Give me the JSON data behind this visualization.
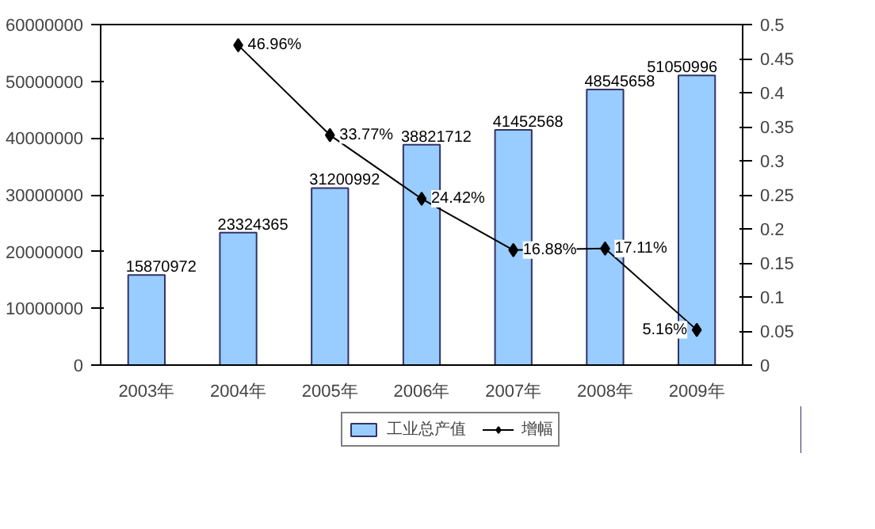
{
  "chart_data": {
    "type": "bar",
    "categories": [
      "2003年",
      "2004年",
      "2005年",
      "2006年",
      "2007年",
      "2008年",
      "2009年"
    ],
    "series": [
      {
        "name": "工业总产值",
        "color": "#99ccff",
        "values": [
          15870972,
          23324365,
          31200992,
          38821712,
          41452568,
          48545658,
          51050996
        ],
        "value_labels": [
          "15870972",
          "23324365",
          "31200992",
          "38821712",
          "41452568",
          "48545658",
          "51050996"
        ]
      },
      {
        "name": "增幅",
        "type": "line",
        "axis": "y2",
        "color": "#000000",
        "values": [
          null,
          0.4696,
          0.3377,
          0.2442,
          0.1688,
          0.1711,
          0.0516
        ],
        "value_labels": [
          null,
          "46.96%",
          "33.77%",
          "24.42%",
          "16.88%",
          "17.11%",
          "5.16%"
        ]
      }
    ],
    "ylim": [
      0,
      60000000
    ],
    "yticks": [
      0,
      10000000,
      20000000,
      30000000,
      40000000,
      50000000,
      60000000
    ],
    "y2lim": [
      0,
      0.5
    ],
    "y2ticks": [
      0,
      0.05,
      0.1,
      0.15,
      0.2,
      0.25,
      0.3,
      0.35,
      0.4,
      0.45,
      0.5
    ],
    "legend": "bottom",
    "marker": "diamond",
    "line_style": "solid"
  }
}
